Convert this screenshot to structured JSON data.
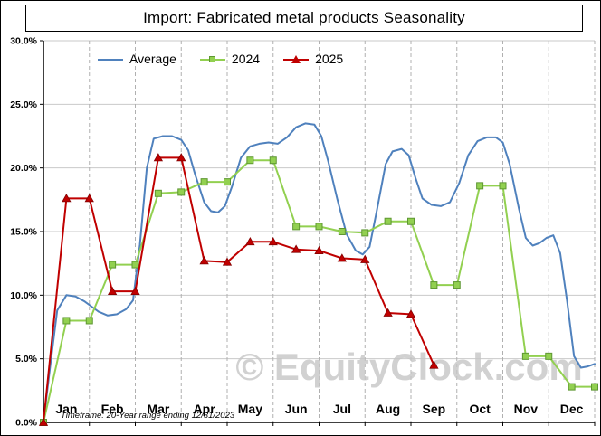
{
  "title": "Import: Fabricated metal products Seasonality",
  "watermark": "© EquityClock.com",
  "footer_note": "Timeframe: 20-Year range ending 12/31/2023",
  "chart_data": {
    "type": "line",
    "title": "Import: Fabricated metal products Seasonality",
    "xlabel": "",
    "ylabel": "",
    "xlim": [
      0,
      12
    ],
    "ylim": [
      0,
      30
    ],
    "x_tick_labels": [
      "Jan",
      "Feb",
      "Mar",
      "Apr",
      "May",
      "Jun",
      "Jul",
      "Aug",
      "Sep",
      "Oct",
      "Nov",
      "Dec"
    ],
    "y_ticks": [
      0,
      5,
      10,
      15,
      20,
      25,
      30
    ],
    "y_tick_labels": [
      "0.0%",
      "5.0%",
      "10.0%",
      "15.0%",
      "20.0%",
      "25.0%",
      "30.0%"
    ],
    "grid": {
      "horizontal": "solid",
      "vertical": "dashed"
    },
    "legend_position": "top-left",
    "axis_color": "#000000",
    "gridline_color": "#c9c9c9",
    "month_divider_color": "#b0b0b0",
    "watermark_color": "#c6c6c6",
    "series": [
      {
        "name": "Average",
        "color": "#4f81bd",
        "marker": "none",
        "points": [
          [
            0,
            0
          ],
          [
            0.15,
            4.5
          ],
          [
            0.3,
            8.8
          ],
          [
            0.5,
            10.0
          ],
          [
            0.7,
            9.9
          ],
          [
            0.9,
            9.5
          ],
          [
            1.05,
            9.1
          ],
          [
            1.2,
            8.7
          ],
          [
            1.4,
            8.4
          ],
          [
            1.6,
            8.5
          ],
          [
            1.8,
            8.9
          ],
          [
            1.95,
            9.6
          ],
          [
            2.1,
            14.0
          ],
          [
            2.25,
            20.0
          ],
          [
            2.4,
            22.3
          ],
          [
            2.6,
            22.5
          ],
          [
            2.8,
            22.5
          ],
          [
            3.0,
            22.2
          ],
          [
            3.15,
            21.4
          ],
          [
            3.3,
            19.5
          ],
          [
            3.5,
            17.3
          ],
          [
            3.65,
            16.6
          ],
          [
            3.8,
            16.5
          ],
          [
            3.95,
            17.0
          ],
          [
            4.1,
            18.5
          ],
          [
            4.3,
            20.8
          ],
          [
            4.5,
            21.7
          ],
          [
            4.7,
            21.9
          ],
          [
            4.9,
            22.0
          ],
          [
            5.1,
            21.9
          ],
          [
            5.3,
            22.4
          ],
          [
            5.5,
            23.2
          ],
          [
            5.7,
            23.5
          ],
          [
            5.9,
            23.4
          ],
          [
            6.05,
            22.5
          ],
          [
            6.2,
            20.5
          ],
          [
            6.4,
            17.5
          ],
          [
            6.6,
            14.8
          ],
          [
            6.8,
            13.5
          ],
          [
            6.95,
            13.2
          ],
          [
            7.1,
            13.8
          ],
          [
            7.25,
            16.5
          ],
          [
            7.45,
            20.3
          ],
          [
            7.6,
            21.3
          ],
          [
            7.8,
            21.5
          ],
          [
            7.95,
            21.0
          ],
          [
            8.1,
            19.2
          ],
          [
            8.25,
            17.6
          ],
          [
            8.45,
            17.1
          ],
          [
            8.65,
            17.0
          ],
          [
            8.85,
            17.3
          ],
          [
            9.05,
            18.8
          ],
          [
            9.25,
            21.0
          ],
          [
            9.45,
            22.1
          ],
          [
            9.65,
            22.4
          ],
          [
            9.85,
            22.4
          ],
          [
            10.0,
            22.0
          ],
          [
            10.15,
            20.3
          ],
          [
            10.35,
            16.8
          ],
          [
            10.5,
            14.5
          ],
          [
            10.65,
            13.9
          ],
          [
            10.8,
            14.1
          ],
          [
            10.95,
            14.5
          ],
          [
            11.1,
            14.7
          ],
          [
            11.25,
            13.3
          ],
          [
            11.4,
            9.5
          ],
          [
            11.55,
            5.2
          ],
          [
            11.7,
            4.3
          ],
          [
            11.85,
            4.4
          ],
          [
            12,
            4.6
          ]
        ]
      },
      {
        "name": "2024",
        "color": "#92d050",
        "marker": "square",
        "marker_edge": "#5e9732",
        "points": [
          [
            0,
            0
          ],
          [
            0.5,
            8.0
          ],
          [
            1,
            8.0
          ],
          [
            1.5,
            12.4
          ],
          [
            2,
            12.4
          ],
          [
            2.5,
            18.0
          ],
          [
            3,
            18.1
          ],
          [
            3.5,
            18.9
          ],
          [
            4,
            18.9
          ],
          [
            4.5,
            20.6
          ],
          [
            5,
            20.6
          ],
          [
            5.5,
            15.4
          ],
          [
            6,
            15.4
          ],
          [
            6.5,
            15.0
          ],
          [
            7,
            14.9
          ],
          [
            7.5,
            15.8
          ],
          [
            8,
            15.8
          ],
          [
            8.5,
            10.8
          ],
          [
            9,
            10.8
          ],
          [
            9.5,
            18.6
          ],
          [
            10,
            18.6
          ],
          [
            10.5,
            5.2
          ],
          [
            11,
            5.2
          ],
          [
            11.5,
            2.8
          ],
          [
            12,
            2.8
          ]
        ]
      },
      {
        "name": "2025",
        "color": "#c00000",
        "marker": "triangle",
        "marker_edge": "#800000",
        "points": [
          [
            0,
            0
          ],
          [
            0.5,
            17.6
          ],
          [
            1,
            17.6
          ],
          [
            1.5,
            10.3
          ],
          [
            2,
            10.3
          ],
          [
            2.5,
            20.8
          ],
          [
            3,
            20.8
          ],
          [
            3.5,
            12.7
          ],
          [
            4,
            12.6
          ],
          [
            4.5,
            14.2
          ],
          [
            5,
            14.2
          ],
          [
            5.5,
            13.6
          ],
          [
            6,
            13.5
          ],
          [
            6.5,
            12.9
          ],
          [
            7,
            12.8
          ],
          [
            7.5,
            8.6
          ],
          [
            8,
            8.5
          ],
          [
            8.5,
            4.5
          ]
        ]
      }
    ]
  }
}
